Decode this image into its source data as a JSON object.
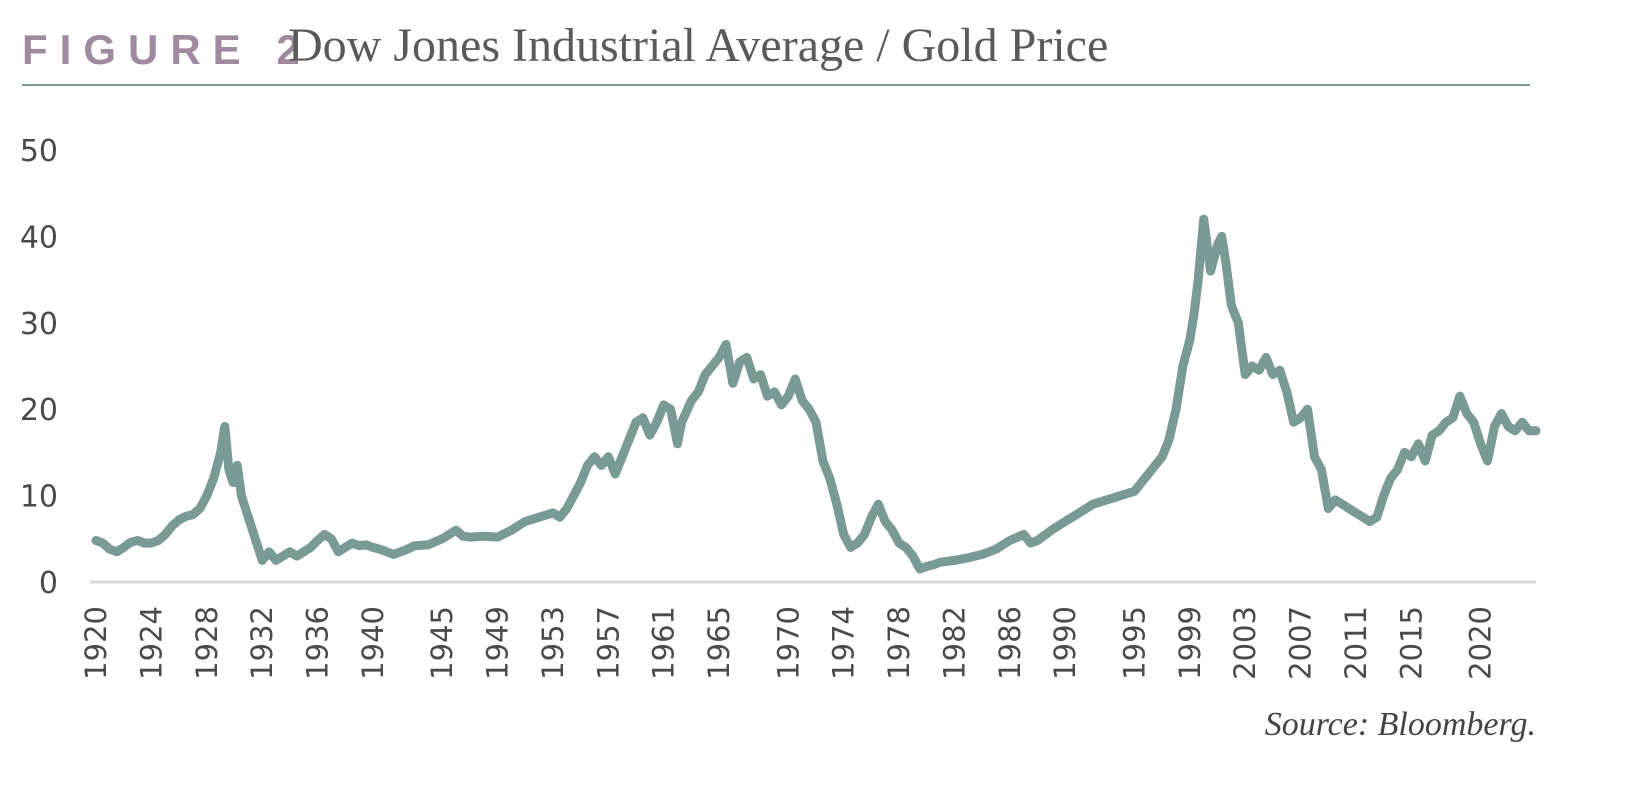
{
  "header": {
    "figure_label": "FIGURE 2",
    "title": "Dow Jones Industrial Average / Gold Price"
  },
  "source": "Source: Bloomberg.",
  "colors": {
    "line": "#7a9b95",
    "axis": "#d9d9d9",
    "label": "#a08aa0",
    "rule": "#7c9b94"
  },
  "chart_data": {
    "type": "line",
    "title": "Dow Jones Industrial Average / Gold Price",
    "xlabel": "",
    "ylabel": "",
    "xlim": [
      1920,
      2024
    ],
    "ylim": [
      0,
      50
    ],
    "yticks": [
      0,
      10,
      20,
      30,
      40,
      50
    ],
    "ytick_labels": [
      "0",
      "10",
      "20",
      "30",
      "40",
      "50"
    ],
    "xticks": [
      1920,
      1924,
      1928,
      1932,
      1936,
      1940,
      1945,
      1949,
      1953,
      1957,
      1961,
      1965,
      1970,
      1974,
      1978,
      1982,
      1986,
      1990,
      1995,
      1999,
      2003,
      2007,
      2011,
      2015,
      2020
    ],
    "xtick_labels": [
      "1920",
      "1924",
      "1928",
      "1932",
      "1936",
      "1940",
      "1945",
      "1949",
      "1953",
      "1957",
      "1961",
      "1965",
      "1970",
      "1974",
      "1978",
      "1982",
      "1986",
      "1990",
      "1995",
      "1999",
      "2003",
      "2007",
      "2011",
      "2015",
      "2020"
    ],
    "grid": false,
    "legend": "none",
    "series": [
      {
        "x": [
          1920,
          1920.5,
          1921,
          1921.5,
          1922,
          1922.5,
          1923,
          1923.5,
          1924,
          1924.5,
          1925,
          1925.5,
          1926,
          1926.5,
          1927,
          1927.5,
          1928,
          1928.5,
          1929,
          1929.3,
          1929.6,
          1929.9,
          1930.2,
          1930.5,
          1930.9,
          1931.3,
          1931.7,
          1932,
          1932.5,
          1933,
          1933.5,
          1934,
          1934.5,
          1935,
          1935.5,
          1936,
          1936.5,
          1937,
          1937.5,
          1938,
          1938.5,
          1939,
          1939.5,
          1940,
          1940.5,
          1941,
          1941.5,
          1942,
          1942.5,
          1943,
          1944,
          1945,
          1946,
          1946.5,
          1947,
          1948,
          1949,
          1950,
          1951,
          1952,
          1953,
          1953.5,
          1954,
          1955,
          1955.5,
          1956,
          1956.5,
          1957,
          1957.5,
          1958,
          1959,
          1959.5,
          1960,
          1960.5,
          1961,
          1961.5,
          1962,
          1962.3,
          1963,
          1963.5,
          1964,
          1964.5,
          1965,
          1965.5,
          1966,
          1966.5,
          1967,
          1967.5,
          1968,
          1968.5,
          1969,
          1969.5,
          1970,
          1970.5,
          1971,
          1971.5,
          1972,
          1972.5,
          1973,
          1973.5,
          1974,
          1974.5,
          1975,
          1975.5,
          1976,
          1976.5,
          1977,
          1977.5,
          1978,
          1978.5,
          1979,
          1979.5,
          1980,
          1980.5,
          1981,
          1982,
          1983,
          1984,
          1985,
          1986,
          1987,
          1987.5,
          1988,
          1989,
          1990,
          1990.5,
          1991,
          1992,
          1993,
          1994,
          1995,
          1996,
          1997,
          1997.5,
          1998,
          1998.5,
          1999,
          1999.3,
          1999.6,
          2000,
          2000.5,
          2001,
          2001.3,
          2001.6,
          2002,
          2002.5,
          2003,
          2003.5,
          2004,
          2004.5,
          2005,
          2005.5,
          2006,
          2006.5,
          2007,
          2007.5,
          2008,
          2008.5,
          2009,
          2009.5,
          2010,
          2010.5,
          2011,
          2011.5,
          2012,
          2012.5,
          2013,
          2013.5,
          2014,
          2014.5,
          2015,
          2015.5,
          2016,
          2016.5,
          2017,
          2017.5,
          2018,
          2018.5,
          2019,
          2019.5,
          2020,
          2020.5,
          2021,
          2021.5,
          2022,
          2022.5,
          2023,
          2023.5,
          2024
        ],
        "y": [
          4.8,
          4.5,
          3.8,
          3.5,
          4.0,
          4.6,
          4.8,
          4.5,
          4.5,
          4.8,
          5.5,
          6.5,
          7.2,
          7.6,
          7.8,
          8.5,
          10.0,
          12.0,
          15.0,
          18.0,
          13.0,
          11.5,
          13.5,
          10.0,
          8.0,
          6.0,
          4.0,
          2.5,
          3.5,
          2.5,
          3.0,
          3.5,
          3.0,
          3.5,
          4.0,
          4.8,
          5.5,
          5.0,
          3.5,
          4.0,
          4.5,
          4.2,
          4.3,
          4.0,
          3.8,
          3.5,
          3.2,
          3.5,
          3.8,
          4.2,
          4.3,
          5.0,
          6.0,
          5.3,
          5.2,
          5.3,
          5.2,
          6.0,
          7.0,
          7.5,
          8.0,
          7.5,
          8.5,
          11.5,
          13.5,
          14.5,
          13.5,
          14.5,
          12.5,
          14.5,
          18.5,
          19.0,
          17.0,
          18.5,
          20.5,
          20.0,
          16.0,
          18.5,
          21.0,
          22.0,
          24.0,
          25.0,
          26.0,
          27.5,
          23.0,
          25.5,
          26.0,
          23.5,
          24.0,
          21.5,
          22.0,
          20.5,
          21.5,
          23.5,
          21.0,
          20.0,
          18.5,
          14.0,
          12.0,
          9.0,
          5.5,
          4.0,
          4.5,
          5.5,
          7.5,
          9.0,
          7.0,
          6.0,
          4.5,
          4.0,
          3.0,
          1.5,
          1.8,
          2.0,
          2.3,
          2.5,
          2.8,
          3.2,
          3.8,
          4.8,
          5.5,
          4.5,
          4.8,
          6.0,
          7.0,
          7.5,
          8.0,
          9.0,
          9.5,
          10.0,
          10.5,
          12.5,
          14.5,
          16.5,
          20.0,
          25.0,
          28.0,
          31.0,
          35.0,
          42.0,
          36.0,
          39.0,
          40.0,
          37.0,
          32.0,
          30.0,
          24.0,
          25.0,
          24.5,
          26.0,
          24.0,
          24.5,
          22.0,
          18.5,
          19.0,
          20.0,
          14.5,
          13.0,
          8.5,
          9.5,
          9.0,
          8.5,
          8.0,
          7.5,
          7.0,
          7.5,
          10.0,
          12.0,
          13.0,
          15.0,
          14.5,
          16.0,
          14.0,
          17.0,
          17.5,
          18.5,
          19.0,
          21.5,
          19.5,
          18.5,
          16.0,
          14.0,
          18.0,
          19.5,
          18.0,
          17.5,
          18.5,
          17.5,
          17.5
        ]
      }
    ]
  }
}
